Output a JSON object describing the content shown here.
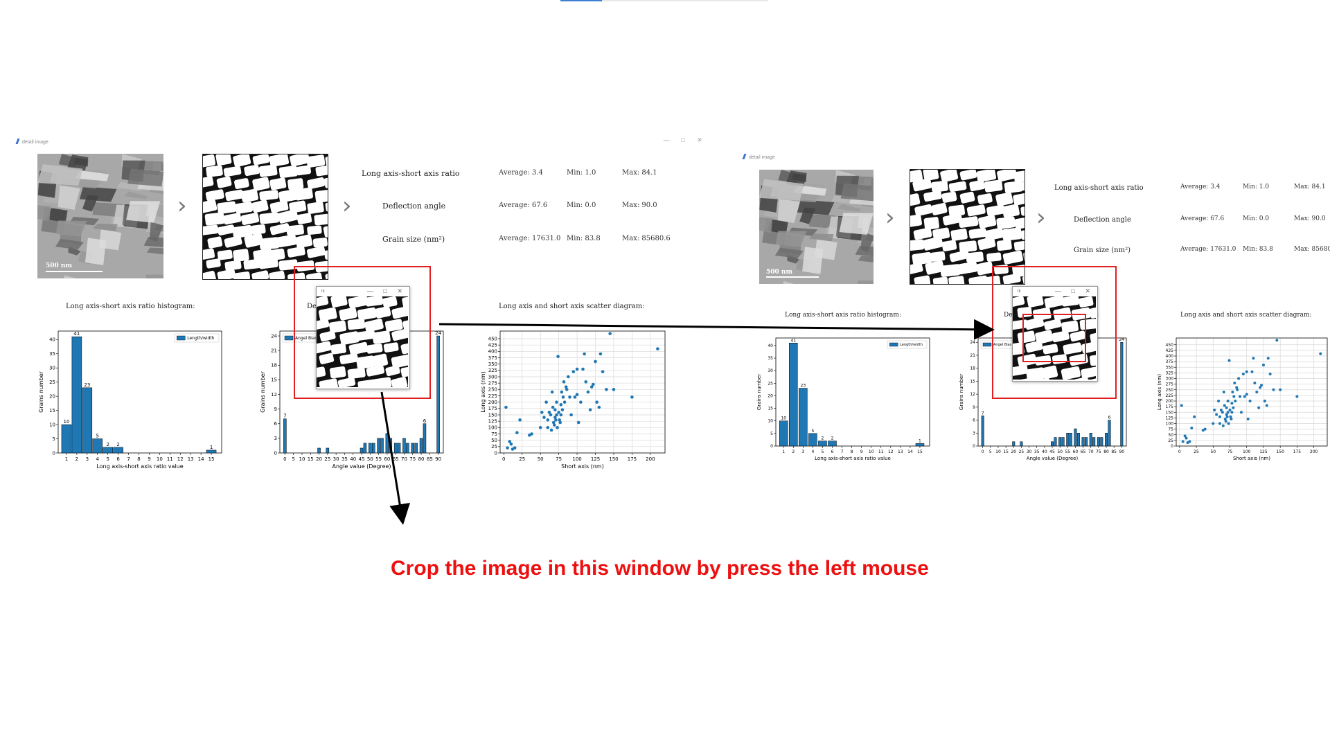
{
  "window": {
    "title": "detail image",
    "controls": [
      "—",
      "□",
      "✕"
    ]
  },
  "image": {
    "scale_bar": "500 nm"
  },
  "stats": [
    {
      "label": "Long axis-short axis ratio",
      "average": "Average:  3.4",
      "min": "Min:  1.0",
      "max": "Max:  84.1"
    },
    {
      "label": "Deflection angle",
      "average": "Average:  67.6",
      "min": "Min:  0.0",
      "max": "Max:  90.0"
    },
    {
      "label": "Grain size (nm²)",
      "average": "Average:  17631.0",
      "min": "Min:  83.8",
      "max": "Max:  85680.6"
    }
  ],
  "stats_right_max_truncated": [
    "Max:  84.1",
    "Max:  90.0",
    "Max:  85680."
  ],
  "captions": {
    "histogram": "Long axis-short axis ratio histogram:",
    "scatter": "Long axis and short axis scatter diagram:"
  },
  "crop_window": {
    "title": "tk",
    "controls": "— □ ✕"
  },
  "occluded_text": {
    "left": "Def",
    "right": "De",
    "right_tail": "a:"
  },
  "instruction": "Crop the image in this window by press the left mouse",
  "chart_data": [
    {
      "type": "bar",
      "categories": [
        "1",
        "2",
        "3",
        "4",
        "5",
        "6",
        "15"
      ],
      "x": [
        1,
        2,
        3,
        4,
        5,
        6,
        15
      ],
      "values": [
        10,
        41,
        23,
        5,
        2,
        2,
        1
      ],
      "data_labels": [
        "10",
        "41",
        "23",
        "5",
        "2",
        "2",
        "1"
      ],
      "xlabel": "Long axis-short axis ratio value",
      "ylabel": "Grains number",
      "xticks": [
        "1",
        "2",
        "3",
        "4",
        "5",
        "6",
        "7",
        "8",
        "9",
        "10",
        "11",
        "12",
        "13",
        "14",
        "15"
      ],
      "yticks": [
        "0",
        "5",
        "10",
        "15",
        "20",
        "25",
        "30",
        "35",
        "40"
      ],
      "xlim": [
        0.2,
        16
      ],
      "ylim": [
        0,
        43
      ],
      "legend": {
        "label": "Length/width",
        "placement": "top-right"
      }
    },
    {
      "type": "bar",
      "x": [
        0,
        20,
        25,
        45,
        47,
        50,
        52,
        55,
        57,
        60,
        62,
        65,
        67,
        70,
        72,
        75,
        77,
        80,
        82,
        85,
        90
      ],
      "values": [
        7,
        1,
        1,
        1,
        2,
        2,
        2,
        3,
        3,
        4,
        3,
        2,
        2,
        3,
        2,
        2,
        2,
        3,
        6,
        0,
        24
      ],
      "data_labels": [
        "7",
        "",
        "",
        "",
        "",
        "",
        "",
        "",
        "",
        "",
        "",
        "",
        "",
        "",
        "",
        "",
        "",
        "",
        "6",
        "",
        "24"
      ],
      "xlabel": "Angle value (Degree)",
      "ylabel": "Grains number",
      "xticks": [
        "0",
        "5",
        "10",
        "15",
        "20",
        "25",
        "30",
        "35",
        "40",
        "45",
        "50",
        "55",
        "60",
        "65",
        "70",
        "75",
        "80",
        "85",
        "90"
      ],
      "yticks": [
        "0",
        "3",
        "6",
        "9",
        "12",
        "15",
        "18",
        "21",
        "24"
      ],
      "xlim": [
        -3,
        93
      ],
      "ylim": [
        0,
        25
      ],
      "legend": {
        "label": "Angel Bias",
        "placement": "top-left"
      }
    },
    {
      "type": "scatter",
      "xlabel": "Short axis (nm)",
      "ylabel": "Long axis (nm)",
      "xticks": [
        "0",
        "25",
        "50",
        "75",
        "100",
        "125",
        "150",
        "175",
        "200"
      ],
      "yticks": [
        "0",
        "25",
        "50",
        "75",
        "100",
        "125",
        "150",
        "175",
        "200",
        "225",
        "250",
        "275",
        "300",
        "325",
        "350",
        "375",
        "400",
        "425",
        "450"
      ],
      "xlim": [
        -5,
        220
      ],
      "ylim": [
        0,
        480
      ],
      "grid": true,
      "points": [
        [
          3,
          180
        ],
        [
          5,
          20
        ],
        [
          8,
          45
        ],
        [
          10,
          35
        ],
        [
          12,
          15
        ],
        [
          15,
          20
        ],
        [
          18,
          80
        ],
        [
          22,
          130
        ],
        [
          35,
          70
        ],
        [
          38,
          75
        ],
        [
          50,
          100
        ],
        [
          52,
          160
        ],
        [
          55,
          140
        ],
        [
          58,
          200
        ],
        [
          60,
          130
        ],
        [
          60,
          100
        ],
        [
          62,
          160
        ],
        [
          64,
          150
        ],
        [
          65,
          90
        ],
        [
          66,
          240
        ],
        [
          67,
          180
        ],
        [
          68,
          120
        ],
        [
          69,
          110
        ],
        [
          70,
          170
        ],
        [
          70,
          140
        ],
        [
          71,
          130
        ],
        [
          72,
          200
        ],
        [
          72,
          150
        ],
        [
          73,
          100
        ],
        [
          74,
          380
        ],
        [
          75,
          160
        ],
        [
          76,
          130
        ],
        [
          77,
          120
        ],
        [
          78,
          190
        ],
        [
          78,
          150
        ],
        [
          79,
          240
        ],
        [
          80,
          170
        ],
        [
          81,
          220
        ],
        [
          82,
          280
        ],
        [
          83,
          200
        ],
        [
          85,
          260
        ],
        [
          86,
          250
        ],
        [
          88,
          300
        ],
        [
          90,
          220
        ],
        [
          92,
          150
        ],
        [
          95,
          320
        ],
        [
          97,
          220
        ],
        [
          100,
          230
        ],
        [
          100,
          330
        ],
        [
          102,
          120
        ],
        [
          105,
          200
        ],
        [
          108,
          330
        ],
        [
          110,
          390
        ],
        [
          112,
          280
        ],
        [
          115,
          240
        ],
        [
          118,
          170
        ],
        [
          120,
          260
        ],
        [
          122,
          270
        ],
        [
          125,
          360
        ],
        [
          127,
          200
        ],
        [
          130,
          180
        ],
        [
          132,
          390
        ],
        [
          135,
          320
        ],
        [
          140,
          250
        ],
        [
          145,
          470
        ],
        [
          150,
          250
        ],
        [
          175,
          220
        ],
        [
          210,
          410
        ]
      ]
    }
  ]
}
